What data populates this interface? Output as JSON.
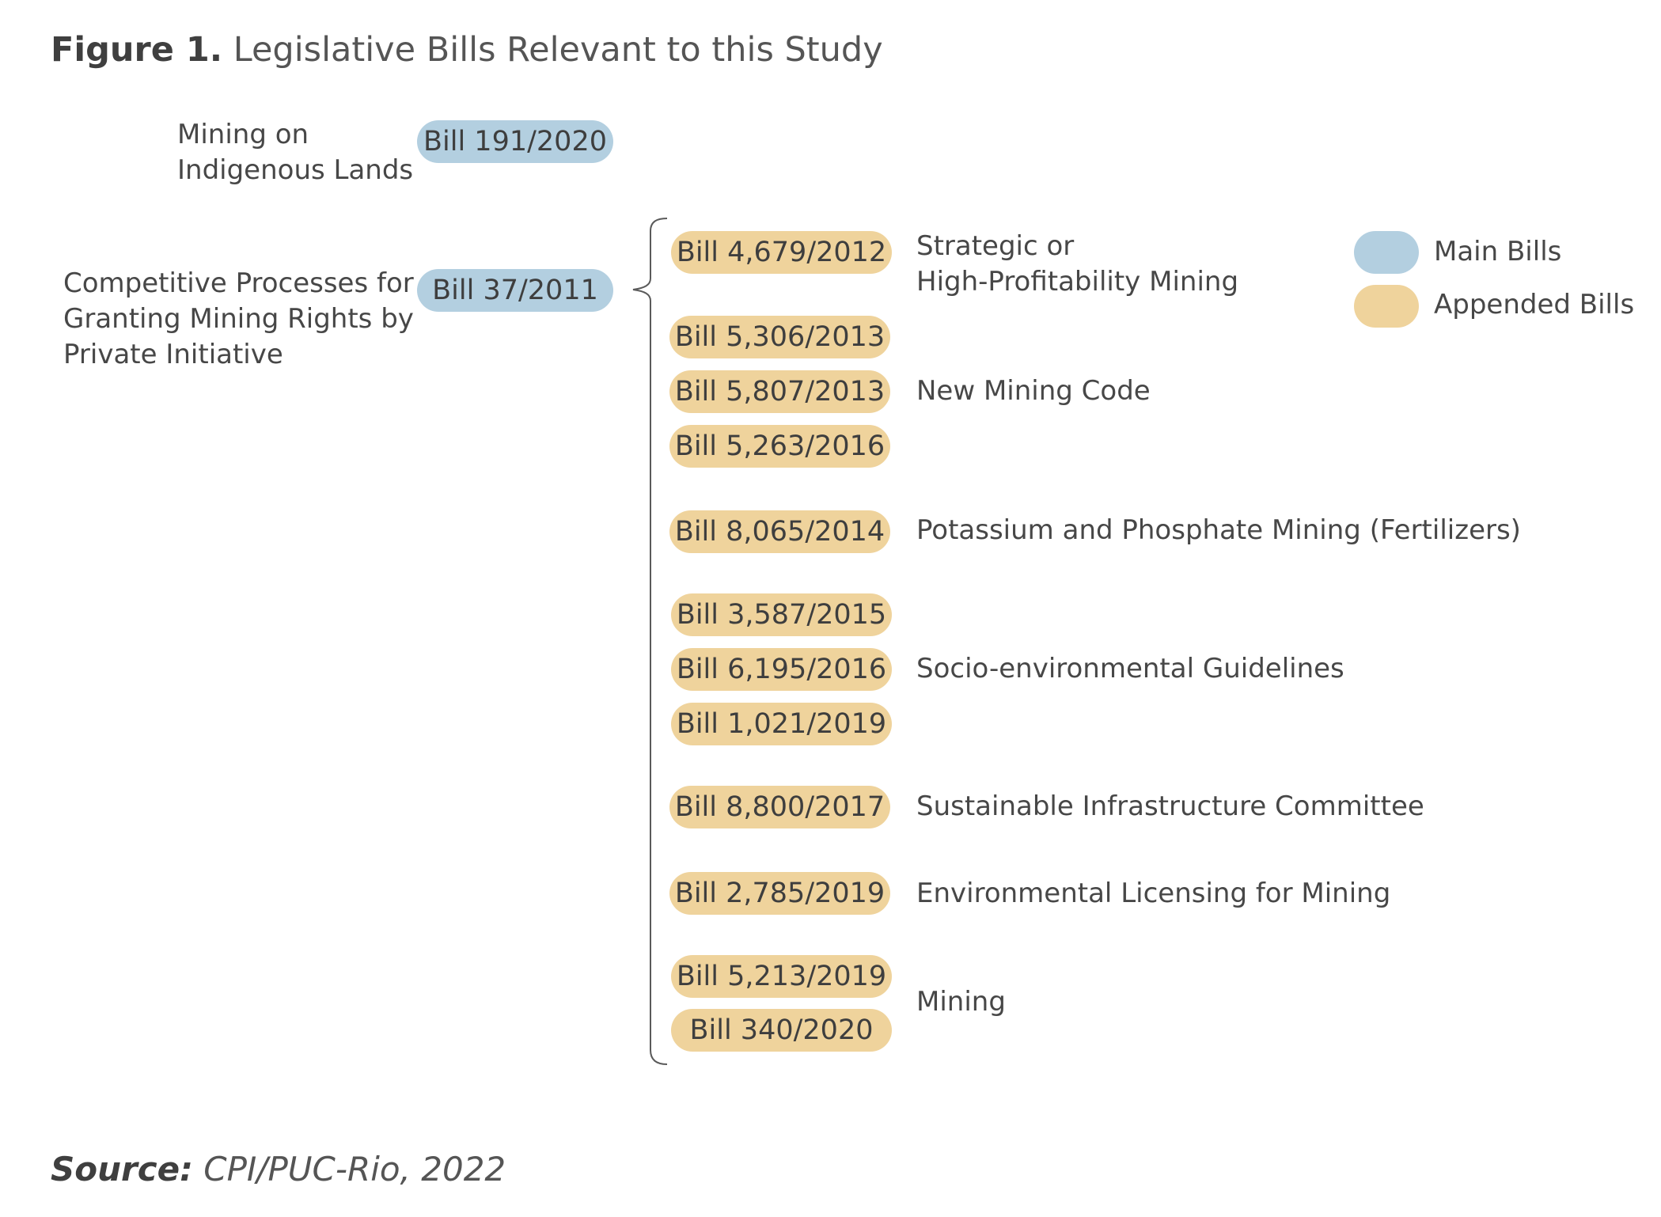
{
  "title": {
    "figure_number": "Figure 1.",
    "text": "Legislative Bills Relevant to this Study"
  },
  "main_bills": [
    {
      "label_lines": [
        "Mining on",
        "Indigenous Lands"
      ],
      "bill": "Bill 191/2020"
    },
    {
      "label_lines": [
        "Competitive Processes for",
        "Granting Mining Rights by",
        "Private Initiative"
      ],
      "bill": "Bill 37/2011"
    }
  ],
  "appended_bills": [
    "Bill 4,679/2012",
    "Bill 5,306/2013",
    "Bill 5,807/2013",
    "Bill 5,263/2016",
    "Bill 8,065/2014",
    "Bill 3,587/2015",
    "Bill 6,195/2016",
    "Bill 1,021/2019",
    "Bill 8,800/2017",
    "Bill 2,785/2019",
    "Bill 5,213/2019",
    "Bill 340/2020"
  ],
  "topics": [
    {
      "lines": [
        "Strategic or",
        "High-Profitability Mining"
      ]
    },
    {
      "lines": [
        "New Mining Code"
      ]
    },
    {
      "lines": [
        "Potassium and Phosphate Mining (Fertilizers)"
      ]
    },
    {
      "lines": [
        "Socio-environmental Guidelines"
      ]
    },
    {
      "lines": [
        "Sustainable Infrastructure Committee"
      ]
    },
    {
      "lines": [
        "Environmental Licensing for Mining"
      ]
    },
    {
      "lines": [
        "Mining"
      ]
    }
  ],
  "legend": {
    "main": {
      "label": "Main Bills",
      "color": "#b3cfe0"
    },
    "appended": {
      "label": "Appended Bills",
      "color": "#efd39c"
    }
  },
  "source": {
    "prefix": "Source:",
    "text": "CPI/PUC-Rio, 2022"
  }
}
